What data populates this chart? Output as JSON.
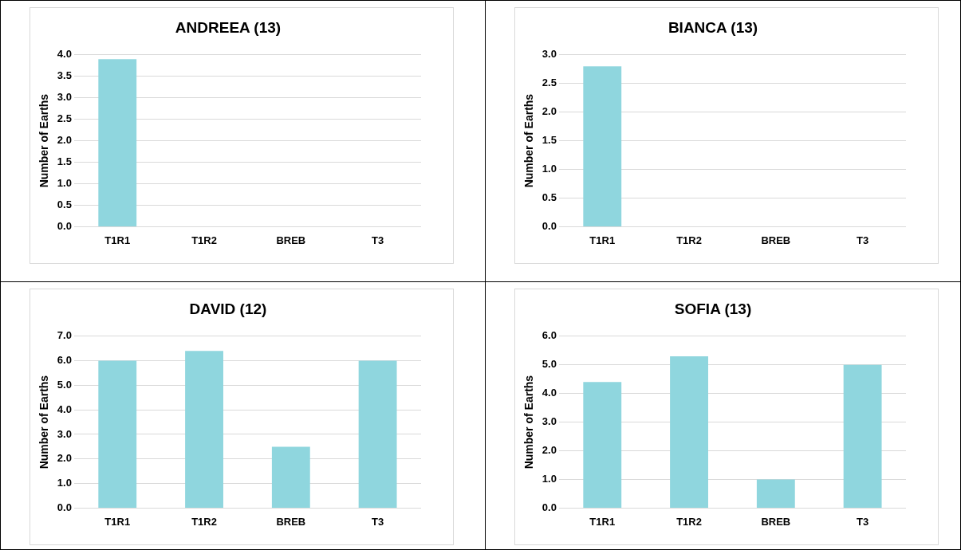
{
  "chart_data": [
    {
      "type": "bar",
      "title": "ANDREEA (13)",
      "ylabel": "Number of Earths",
      "categories": [
        "T1R1",
        "T1R2",
        "BREB",
        "T3"
      ],
      "values": [
        3.9,
        null,
        null,
        null
      ],
      "color": "#8fd6de",
      "ylim": [
        0,
        4
      ],
      "yticks": [
        {
          "value": 0,
          "label": "0.0"
        },
        {
          "value": 0.5,
          "label": "0.5"
        },
        {
          "value": 1,
          "label": "1.0"
        },
        {
          "value": 1.5,
          "label": "1.5"
        },
        {
          "value": 2,
          "label": "2.0"
        },
        {
          "value": 2.5,
          "label": "2.5"
        },
        {
          "value": 3,
          "label": "3.0"
        },
        {
          "value": 3.5,
          "label": "3.5"
        },
        {
          "value": 4,
          "label": "4.0"
        }
      ],
      "grid": "y"
    },
    {
      "type": "bar",
      "title": "BIANCA (13)",
      "ylabel": "Number of Earths",
      "categories": [
        "T1R1",
        "T1R2",
        "BREB",
        "T3"
      ],
      "values": [
        2.8,
        null,
        null,
        null
      ],
      "color": "#8fd6de",
      "ylim": [
        0,
        3
      ],
      "yticks": [
        {
          "value": 0,
          "label": "0.0"
        },
        {
          "value": 0.5,
          "label": "0.5"
        },
        {
          "value": 1,
          "label": "1.0"
        },
        {
          "value": 1.5,
          "label": "1.5"
        },
        {
          "value": 2,
          "label": "2.0"
        },
        {
          "value": 2.5,
          "label": "2.5"
        },
        {
          "value": 3,
          "label": "3.0"
        }
      ],
      "grid": "y"
    },
    {
      "type": "bar",
      "title": "DAVID (12)",
      "ylabel": "Number of Earths",
      "categories": [
        "T1R1",
        "T1R2",
        "BREB",
        "T3"
      ],
      "values": [
        6.0,
        6.4,
        2.5,
        6.0
      ],
      "color": "#8fd6de",
      "ylim": [
        0,
        7
      ],
      "yticks": [
        {
          "value": 0,
          "label": "0.0"
        },
        {
          "value": 1,
          "label": "1.0"
        },
        {
          "value": 2,
          "label": "2.0"
        },
        {
          "value": 3,
          "label": "3.0"
        },
        {
          "value": 4,
          "label": "4.0"
        },
        {
          "value": 5,
          "label": "5.0"
        },
        {
          "value": 6,
          "label": "6.0"
        },
        {
          "value": 7,
          "label": "7.0"
        }
      ],
      "grid": "y"
    },
    {
      "type": "bar",
      "title": "SOFIA (13)",
      "ylabel": "Number of Earths",
      "categories": [
        "T1R1",
        "T1R2",
        "BREB",
        "T3"
      ],
      "values": [
        4.4,
        5.3,
        1.0,
        5.0
      ],
      "color": "#8fd6de",
      "ylim": [
        0,
        6
      ],
      "yticks": [
        {
          "value": 0,
          "label": "0.0"
        },
        {
          "value": 1,
          "label": "1.0"
        },
        {
          "value": 2,
          "label": "2.0"
        },
        {
          "value": 3,
          "label": "3.0"
        },
        {
          "value": 4,
          "label": "4.0"
        },
        {
          "value": 5,
          "label": "5.0"
        },
        {
          "value": 6,
          "label": "6.0"
        }
      ],
      "grid": "y"
    }
  ]
}
